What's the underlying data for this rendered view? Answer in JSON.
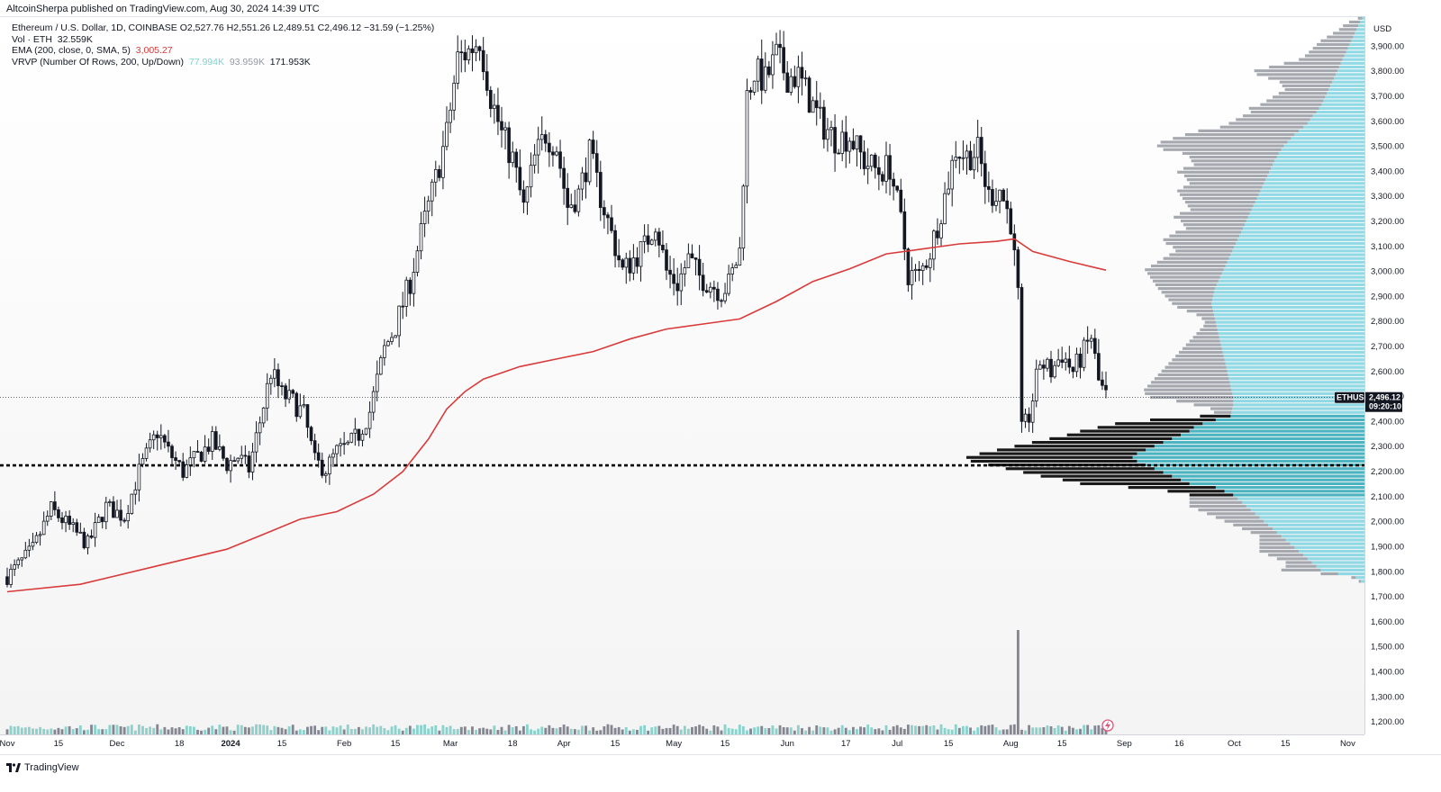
{
  "header": {
    "publish_line": "AltcoinSherpa published on TradingView.com, Aug 30, 2024 14:39 UTC"
  },
  "legend": {
    "symbol_line": "Ethereum / U.S. Dollar, 1D, COINBASE  O2,527.76  H2,551.26  L2,489.51  C2,496.12  −31.59 (−1.25%)",
    "vol_label": "Vol · ETH",
    "vol_value": "32.559K",
    "ema_label": "EMA (200, close, 0, SMA, 5)",
    "ema_value": "3,005.27",
    "vrvp_label": "VRVP (Number Of Rows, 200, Up/Down)",
    "vrvp_up": "77.994K",
    "vrvp_down": "93.959K",
    "vrvp_total": "171.953K"
  },
  "footer": {
    "brand": "TradingView",
    "logo_icon": "tradingview-logo-icon"
  },
  "colors": {
    "candle": "#131722",
    "ema": "#d93a3a",
    "vol_up": "#7fcdc8",
    "vol_down": "#787b86",
    "vp_up": "#7ed3e0",
    "vp_down": "#9b9ea6",
    "value_area_up": "#2ea7b7",
    "value_area_down": "#000000",
    "horizontal_line": "#000000"
  },
  "chart_data": {
    "type": "candlestick",
    "symbol": "ETHUSD",
    "currency": "USD",
    "timeframe": "1D",
    "ylim": [
      1150,
      4020
    ],
    "y_ticks": [
      "3,900.00",
      "3,800.00",
      "3,700.00",
      "3,600.00",
      "3,500.00",
      "3,400.00",
      "3,300.00",
      "3,200.00",
      "3,100.00",
      "3,000.00",
      "2,900.00",
      "2,800.00",
      "2,700.00",
      "2,600.00",
      "2,500.00",
      "2,400.00",
      "2,300.00",
      "2,200.00",
      "2,100.00",
      "2,000.00",
      "1,900.00",
      "1,800.00",
      "1,700.00",
      "1,600.00",
      "1,500.00",
      "1,400.00",
      "1,300.00",
      "1,200.00"
    ],
    "y_tick_values": [
      3900,
      3800,
      3700,
      3600,
      3500,
      3400,
      3300,
      3200,
      3100,
      3000,
      2900,
      2800,
      2700,
      2600,
      2500,
      2400,
      2300,
      2200,
      2100,
      2000,
      1900,
      1800,
      1700,
      1600,
      1500,
      1400,
      1300,
      1200
    ],
    "x_ticks": [
      {
        "label": "Nov",
        "day": 0
      },
      {
        "label": "15",
        "day": 14
      },
      {
        "label": "Dec",
        "day": 30
      },
      {
        "label": "18",
        "day": 47
      },
      {
        "label": "2024",
        "day": 61,
        "bold": true
      },
      {
        "label": "15",
        "day": 75
      },
      {
        "label": "Feb",
        "day": 92
      },
      {
        "label": "15",
        "day": 106
      },
      {
        "label": "Mar",
        "day": 121
      },
      {
        "label": "18",
        "day": 138
      },
      {
        "label": "Apr",
        "day": 152
      },
      {
        "label": "15",
        "day": 166
      },
      {
        "label": "May",
        "day": 182
      },
      {
        "label": "15",
        "day": 196
      },
      {
        "label": "Jun",
        "day": 213
      },
      {
        "label": "17",
        "day": 229
      },
      {
        "label": "Jul",
        "day": 243
      },
      {
        "label": "15",
        "day": 257
      },
      {
        "label": "Aug",
        "day": 274
      },
      {
        "label": "15",
        "day": 288
      },
      {
        "label": "Sep",
        "day": 305
      },
      {
        "label": "16",
        "day": 320
      },
      {
        "label": "Oct",
        "day": 335
      },
      {
        "label": "15",
        "day": 349
      },
      {
        "label": "Nov",
        "day": 366
      }
    ],
    "last_price_label": "ETHUSD",
    "last_price": "2,496.12",
    "last_price_value": 2496.12,
    "countdown": "09:20:10",
    "horizontal_line_value": 2225,
    "close_path": [
      [
        0,
        1780
      ],
      [
        7,
        1890
      ],
      [
        12,
        2050
      ],
      [
        17,
        1980
      ],
      [
        22,
        1910
      ],
      [
        27,
        2060
      ],
      [
        32,
        2020
      ],
      [
        36,
        2200
      ],
      [
        41,
        2360
      ],
      [
        44,
        2280
      ],
      [
        48,
        2200
      ],
      [
        52,
        2260
      ],
      [
        56,
        2320
      ],
      [
        60,
        2230
      ],
      [
        63,
        2260
      ],
      [
        66,
        2210
      ],
      [
        69,
        2400
      ],
      [
        72,
        2600
      ],
      [
        75,
        2510
      ],
      [
        78,
        2480
      ],
      [
        81,
        2430
      ],
      [
        84,
        2240
      ],
      [
        87,
        2210
      ],
      [
        90,
        2280
      ],
      [
        93,
        2300
      ],
      [
        96,
        2350
      ],
      [
        99,
        2440
      ],
      [
        103,
        2690
      ],
      [
        106,
        2780
      ],
      [
        110,
        2960
      ],
      [
        113,
        3150
      ],
      [
        117,
        3370
      ],
      [
        120,
        3550
      ],
      [
        123,
        3850
      ],
      [
        126,
        3880
      ],
      [
        129,
        3930
      ],
      [
        132,
        3700
      ],
      [
        135,
        3550
      ],
      [
        138,
        3450
      ],
      [
        141,
        3250
      ],
      [
        144,
        3450
      ],
      [
        147,
        3550
      ],
      [
        150,
        3500
      ],
      [
        153,
        3260
      ],
      [
        156,
        3310
      ],
      [
        159,
        3470
      ],
      [
        162,
        3300
      ],
      [
        165,
        3150
      ],
      [
        168,
        3000
      ],
      [
        171,
        3050
      ],
      [
        174,
        3100
      ],
      [
        177,
        3200
      ],
      [
        180,
        3000
      ],
      [
        183,
        2950
      ],
      [
        186,
        3050
      ],
      [
        189,
        2980
      ],
      [
        192,
        2950
      ],
      [
        195,
        2920
      ],
      [
        197,
        2950
      ],
      [
        200,
        3080
      ],
      [
        202,
        3700
      ],
      [
        204,
        3800
      ],
      [
        207,
        3760
      ],
      [
        210,
        3860
      ],
      [
        213,
        3780
      ],
      [
        216,
        3780
      ],
      [
        219,
        3690
      ],
      [
        222,
        3600
      ],
      [
        226,
        3530
      ],
      [
        230,
        3540
      ],
      [
        234,
        3440
      ],
      [
        238,
        3400
      ],
      [
        241,
        3420
      ],
      [
        244,
        3200
      ],
      [
        246,
        2990
      ],
      [
        249,
        2980
      ],
      [
        252,
        3080
      ],
      [
        256,
        3300
      ],
      [
        259,
        3490
      ],
      [
        262,
        3460
      ],
      [
        265,
        3480
      ],
      [
        268,
        3300
      ],
      [
        271,
        3330
      ],
      [
        274,
        3200
      ],
      [
        276,
        2900
      ],
      [
        277,
        2360
      ],
      [
        279,
        2420
      ],
      [
        282,
        2640
      ],
      [
        285,
        2600
      ],
      [
        288,
        2670
      ],
      [
        291,
        2600
      ],
      [
        294,
        2680
      ],
      [
        296,
        2740
      ],
      [
        298,
        2560
      ],
      [
        300,
        2500
      ]
    ],
    "ema_200": [
      [
        0,
        1720
      ],
      [
        20,
        1750
      ],
      [
        40,
        1820
      ],
      [
        60,
        1890
      ],
      [
        70,
        1950
      ],
      [
        80,
        2010
      ],
      [
        90,
        2040
      ],
      [
        100,
        2110
      ],
      [
        108,
        2200
      ],
      [
        115,
        2330
      ],
      [
        120,
        2450
      ],
      [
        125,
        2520
      ],
      [
        130,
        2570
      ],
      [
        140,
        2620
      ],
      [
        150,
        2650
      ],
      [
        160,
        2680
      ],
      [
        170,
        2730
      ],
      [
        180,
        2770
      ],
      [
        190,
        2790
      ],
      [
        200,
        2810
      ],
      [
        210,
        2880
      ],
      [
        220,
        2960
      ],
      [
        230,
        3010
      ],
      [
        240,
        3070
      ],
      [
        250,
        3090
      ],
      [
        260,
        3110
      ],
      [
        270,
        3120
      ],
      [
        275,
        3130
      ],
      [
        280,
        3080
      ],
      [
        290,
        3040
      ],
      [
        300,
        3005
      ]
    ],
    "volume_profile_max_total": 700,
    "volume_profile": [
      [
        4010,
        5,
        10
      ],
      [
        3995,
        10,
        25
      ],
      [
        3980,
        14,
        35
      ],
      [
        3965,
        18,
        40
      ],
      [
        3950,
        22,
        50
      ],
      [
        3935,
        26,
        60
      ],
      [
        3920,
        30,
        70
      ],
      [
        3905,
        34,
        75
      ],
      [
        3890,
        38,
        80
      ],
      [
        3875,
        42,
        85
      ],
      [
        3860,
        46,
        90
      ],
      [
        3845,
        50,
        100
      ],
      [
        3830,
        54,
        130
      ],
      [
        3815,
        58,
        160
      ],
      [
        3800,
        62,
        190
      ],
      [
        3785,
        66,
        180
      ],
      [
        3770,
        70,
        150
      ],
      [
        3755,
        74,
        120
      ],
      [
        3740,
        78,
        110
      ],
      [
        3725,
        82,
        100
      ],
      [
        3710,
        86,
        110
      ],
      [
        3695,
        90,
        120
      ],
      [
        3680,
        94,
        130
      ],
      [
        3665,
        98,
        140
      ],
      [
        3650,
        104,
        160
      ],
      [
        3635,
        110,
        150
      ],
      [
        3620,
        118,
        160
      ],
      [
        3605,
        124,
        170
      ],
      [
        3590,
        130,
        180
      ],
      [
        3575,
        140,
        190
      ],
      [
        3560,
        150,
        230
      ],
      [
        3545,
        160,
        250
      ],
      [
        3530,
        168,
        270
      ],
      [
        3515,
        176,
        290
      ],
      [
        3500,
        184,
        290
      ],
      [
        3485,
        190,
        270
      ],
      [
        3470,
        196,
        220
      ],
      [
        3455,
        200,
        200
      ],
      [
        3440,
        206,
        190
      ],
      [
        3425,
        210,
        180
      ],
      [
        3410,
        214,
        200
      ],
      [
        3395,
        218,
        210
      ],
      [
        3380,
        222,
        190
      ],
      [
        3365,
        226,
        180
      ],
      [
        3350,
        230,
        170
      ],
      [
        3335,
        234,
        180
      ],
      [
        3320,
        238,
        190
      ],
      [
        3305,
        242,
        180
      ],
      [
        3290,
        246,
        170
      ],
      [
        3275,
        250,
        160
      ],
      [
        3260,
        254,
        150
      ],
      [
        3245,
        258,
        140
      ],
      [
        3230,
        262,
        160
      ],
      [
        3215,
        266,
        170
      ],
      [
        3200,
        270,
        150
      ],
      [
        3185,
        274,
        140
      ],
      [
        3170,
        278,
        130
      ],
      [
        3155,
        282,
        150
      ],
      [
        3140,
        286,
        160
      ],
      [
        3125,
        290,
        170
      ],
      [
        3110,
        294,
        160
      ],
      [
        3095,
        298,
        140
      ],
      [
        3080,
        302,
        130
      ],
      [
        3065,
        306,
        140
      ],
      [
        3050,
        310,
        150
      ],
      [
        3035,
        314,
        160
      ],
      [
        3020,
        318,
        170
      ],
      [
        3005,
        322,
        180
      ],
      [
        2990,
        326,
        170
      ],
      [
        2975,
        330,
        160
      ],
      [
        2960,
        334,
        150
      ],
      [
        2945,
        338,
        140
      ],
      [
        2930,
        342,
        130
      ],
      [
        2915,
        344,
        120
      ],
      [
        2900,
        346,
        110
      ],
      [
        2885,
        348,
        100
      ],
      [
        2870,
        350,
        90
      ],
      [
        2855,
        348,
        80
      ],
      [
        2840,
        346,
        60
      ],
      [
        2825,
        344,
        40
      ],
      [
        2810,
        342,
        30
      ],
      [
        2795,
        340,
        25
      ],
      [
        2780,
        338,
        30
      ],
      [
        2765,
        336,
        40
      ],
      [
        2750,
        334,
        50
      ],
      [
        2735,
        332,
        60
      ],
      [
        2720,
        330,
        70
      ],
      [
        2705,
        328,
        80
      ],
      [
        2690,
        326,
        90
      ],
      [
        2675,
        324,
        100
      ],
      [
        2660,
        322,
        110
      ],
      [
        2645,
        320,
        120
      ],
      [
        2630,
        318,
        130
      ],
      [
        2615,
        316,
        140
      ],
      [
        2600,
        314,
        150
      ],
      [
        2585,
        312,
        160
      ],
      [
        2570,
        310,
        170
      ],
      [
        2555,
        308,
        180
      ],
      [
        2540,
        306,
        190
      ],
      [
        2525,
        304,
        200
      ],
      [
        2510,
        302,
        200
      ],
      [
        2495,
        300,
        190
      ],
      [
        2480,
        300,
        130
      ],
      [
        2465,
        300,
        90
      ],
      [
        2450,
        302,
        50
      ],
      [
        2435,
        304,
        40
      ],
      [
        2420,
        306,
        70
      ],
      [
        2405,
        340,
        150
      ],
      [
        2390,
        370,
        200
      ],
      [
        2375,
        390,
        220
      ],
      [
        2360,
        400,
        250
      ],
      [
        2345,
        420,
        260
      ],
      [
        2330,
        440,
        280
      ],
      [
        2315,
        460,
        300
      ],
      [
        2300,
        480,
        320
      ],
      [
        2285,
        500,
        340
      ],
      [
        2270,
        520,
        360
      ],
      [
        2255,
        530,
        380
      ],
      [
        2240,
        520,
        380
      ],
      [
        2225,
        500,
        360
      ],
      [
        2210,
        480,
        340
      ],
      [
        2195,
        460,
        320
      ],
      [
        2180,
        440,
        300
      ],
      [
        2165,
        420,
        270
      ],
      [
        2150,
        400,
        250
      ],
      [
        2135,
        340,
        200
      ],
      [
        2120,
        320,
        130
      ],
      [
        2105,
        300,
        100
      ],
      [
        2090,
        290,
        110
      ],
      [
        2075,
        280,
        120
      ],
      [
        2060,
        270,
        130
      ],
      [
        2045,
        260,
        120
      ],
      [
        2030,
        250,
        110
      ],
      [
        2015,
        240,
        100
      ],
      [
        2000,
        230,
        90
      ],
      [
        1985,
        220,
        80
      ],
      [
        1970,
        210,
        70
      ],
      [
        1955,
        200,
        60
      ],
      [
        1940,
        190,
        50
      ],
      [
        1925,
        180,
        60
      ],
      [
        1910,
        170,
        70
      ],
      [
        1895,
        160,
        80
      ],
      [
        1880,
        150,
        90
      ],
      [
        1865,
        140,
        80
      ],
      [
        1850,
        130,
        70
      ],
      [
        1835,
        120,
        60
      ],
      [
        1820,
        110,
        70
      ],
      [
        1805,
        100,
        90
      ],
      [
        1790,
        60,
        40
      ],
      [
        1775,
        20,
        10
      ],
      [
        1760,
        8,
        5
      ]
    ],
    "value_area": [
      2100,
      2420
    ],
    "volume_bars_max": 3500,
    "volume_spike": {
      "day": 276,
      "value": 3500
    }
  }
}
